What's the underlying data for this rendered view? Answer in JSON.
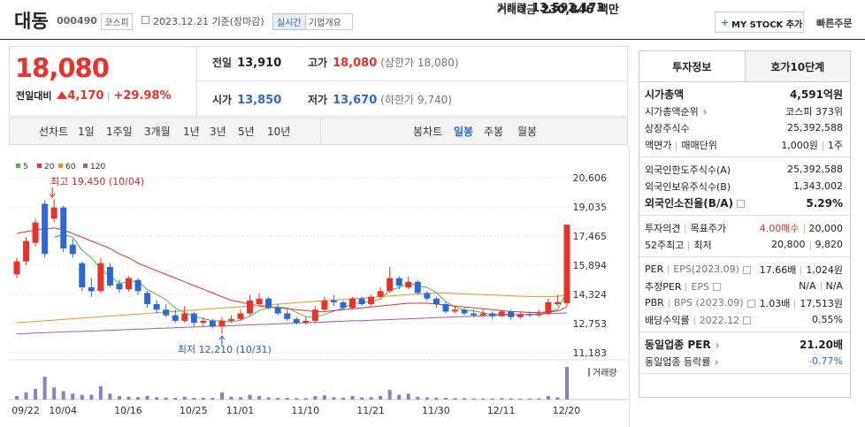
{
  "header": {
    "name": "대동",
    "code": "000490",
    "market": "코스피",
    "date": "2023.12.21 기준(장마감)",
    "realtime": "실시간",
    "company_info": "기업개요",
    "my_stock": "MY STOCK 추가",
    "quick_order": "빠른주문"
  },
  "quote": {
    "price": "18,080",
    "change_label": "전일대비",
    "change": "4,170",
    "change_rate": "+29.98%",
    "cells": [
      [
        {
          "label": "전일",
          "value": "13,910"
        },
        {
          "label": "고가",
          "value": "18,080",
          "note": "(상한가 18,080)"
        },
        {
          "label": "거래량",
          "value": "13,592,173"
        }
      ],
      [
        {
          "label": "시가",
          "value": "13,850"
        },
        {
          "label": "저가",
          "value": "13,670",
          "note": "(하한가 9,740)"
        },
        {
          "label": "거래대금",
          "value": "230,846 백만"
        }
      ]
    ]
  },
  "chart_tabs": {
    "line_label": "선차트",
    "line_periods": [
      "1일",
      "1주일",
      "3개월",
      "1년",
      "3년",
      "5년",
      "10년"
    ],
    "candle_label": "봉차트",
    "candle_periods": [
      "일봉",
      "주봉",
      "월봉"
    ]
  },
  "chart_data": {
    "type": "candlestick",
    "categories": [
      "09/22",
      null,
      null,
      null,
      "10/04",
      null,
      null,
      null,
      null,
      null,
      null,
      "10/16",
      null,
      null,
      null,
      null,
      null,
      null,
      "10/25",
      null,
      null,
      null,
      null,
      "11/01",
      null,
      null,
      null,
      null,
      null,
      null,
      "11/10",
      null,
      null,
      null,
      null,
      null,
      null,
      "11/21",
      null,
      null,
      null,
      null,
      null,
      null,
      "11/30",
      null,
      null,
      null,
      null,
      null,
      null,
      "12/11",
      null,
      null,
      null,
      null,
      null,
      null,
      "12/20",
      null
    ],
    "open": [
      15400,
      16100,
      17100,
      19200,
      18400,
      19000,
      17000,
      16000,
      14700,
      14500,
      15800,
      14900,
      14600,
      15100,
      14400,
      13800,
      13500,
      13200,
      12900,
      13300,
      12800,
      12900,
      12600,
      12900,
      13000,
      13300,
      13800,
      14100,
      13600,
      13300,
      13000,
      12800,
      12900,
      13500,
      14000,
      13900,
      13600,
      14100,
      13800,
      14200,
      14500,
      15200,
      14700,
      15000,
      14400,
      14100,
      13800,
      13400,
      13500,
      13300,
      13200,
      13300,
      13150,
      13400,
      13100,
      13250,
      13200,
      13300,
      13800,
      13850
    ],
    "high": [
      16300,
      17400,
      18400,
      19400,
      19450,
      19100,
      17300,
      16100,
      15200,
      16300,
      16000,
      15100,
      15300,
      15200,
      14500,
      14000,
      13800,
      13500,
      13700,
      13400,
      13100,
      13000,
      13100,
      13200,
      13500,
      14300,
      14400,
      14200,
      13800,
      13500,
      13100,
      13100,
      13700,
      14200,
      14300,
      14000,
      14200,
      14200,
      14300,
      14700,
      15800,
      15300,
      15300,
      15100,
      14500,
      14200,
      13900,
      13700,
      13600,
      13500,
      13500,
      13400,
      13500,
      13500,
      13400,
      13400,
      13500,
      14100,
      14300,
      18080
    ],
    "low": [
      15200,
      15900,
      16900,
      16300,
      18200,
      16600,
      16300,
      14500,
      14200,
      14400,
      14700,
      14400,
      14500,
      14300,
      13600,
      13300,
      13100,
      12800,
      12800,
      12600,
      12600,
      12500,
      12210,
      12800,
      12900,
      13200,
      13700,
      13500,
      13200,
      12900,
      12700,
      12700,
      12800,
      13400,
      13700,
      13500,
      13500,
      13700,
      13700,
      14100,
      14400,
      14600,
      14600,
      14300,
      14000,
      13600,
      13300,
      13300,
      13200,
      13100,
      13100,
      13000,
      13100,
      12950,
      13000,
      13100,
      13100,
      13200,
      13700,
      13670
    ],
    "close": [
      16100,
      17200,
      18200,
      16500,
      19000,
      16800,
      16500,
      14700,
      14500,
      16000,
      14800,
      14600,
      15200,
      14500,
      13800,
      13500,
      13200,
      12900,
      13300,
      12800,
      12900,
      12600,
      12900,
      13000,
      13300,
      14000,
      14100,
      13600,
      13300,
      13000,
      12800,
      12900,
      13500,
      14000,
      13900,
      13600,
      14100,
      13800,
      14200,
      14500,
      15200,
      14800,
      15000,
      14400,
      14100,
      13800,
      13400,
      13500,
      13300,
      13200,
      13300,
      13150,
      13400,
      13100,
      13250,
      13200,
      13300,
      13900,
      13910,
      18080
    ],
    "volume": [
      1500000,
      3000000,
      4500000,
      9500000,
      5000000,
      3500000,
      2500000,
      2000000,
      2000000,
      5500000,
      2500000,
      1500000,
      1200000,
      1000000,
      1500000,
      1000000,
      800000,
      700000,
      1200000,
      700000,
      800000,
      700000,
      3000000,
      1200000,
      1000000,
      2000000,
      1500000,
      900000,
      700000,
      700000,
      600000,
      600000,
      1500000,
      1800000,
      1000000,
      800000,
      1500000,
      900000,
      1000000,
      1500000,
      4000000,
      2000000,
      2500000,
      1200000,
      900000,
      800000,
      700000,
      600000,
      600000,
      500000,
      500000,
      500000,
      600000,
      500000,
      400000,
      400000,
      500000,
      1500000,
      1000000,
      13592173
    ],
    "volume_label": "거래량",
    "series": [
      {
        "name": "5",
        "color": "#4cb84c",
        "values": [
          null,
          null,
          null,
          null,
          17400,
          17540,
          17400,
          16700,
          16300,
          15700,
          15300,
          14920,
          15020,
          15020,
          14580,
          14320,
          14040,
          13580,
          13340,
          13140,
          13020,
          12900,
          12900,
          12840,
          12940,
          13160,
          13460,
          13600,
          13660,
          13600,
          13360,
          13120,
          13100,
          13240,
          13420,
          13580,
          13820,
          13880,
          13940,
          14080,
          14540,
          14700,
          14940,
          14780,
          14700,
          14420,
          13940,
          13640,
          13480,
          13440,
          13340,
          13230,
          13270,
          13230,
          13240,
          13220,
          13250,
          13390,
          13500,
          14480
        ]
      },
      {
        "name": "20",
        "color": "#e5322d",
        "values": [
          17600,
          17700,
          17800,
          17850,
          17900,
          17800,
          17600,
          17400,
          17200,
          17000,
          16800,
          16500,
          16300,
          16000,
          15800,
          15600,
          15400,
          15200,
          15000,
          14800,
          14600,
          14400,
          14200,
          14000,
          13900,
          13800,
          13700,
          13650,
          13600,
          13550,
          13500,
          13450,
          13400,
          13400,
          13450,
          13500,
          13550,
          13600,
          13650,
          13700,
          13750,
          13800,
          13850,
          13850,
          13850,
          13800,
          13750,
          13700,
          13650,
          13600,
          13550,
          13500,
          13450,
          13400,
          13380,
          13350,
          13350,
          13380,
          13420,
          13650
        ]
      },
      {
        "name": "60",
        "color": "#f0922b",
        "values": [
          12800,
          12830,
          12870,
          12900,
          12940,
          12980,
          13010,
          13050,
          13080,
          13120,
          13160,
          13190,
          13230,
          13260,
          13300,
          13340,
          13370,
          13410,
          13440,
          13480,
          13520,
          13550,
          13590,
          13620,
          13660,
          13700,
          13730,
          13770,
          13800,
          13840,
          13880,
          13910,
          13950,
          13980,
          14020,
          14060,
          14090,
          14130,
          14160,
          14200,
          14240,
          14270,
          14310,
          14340,
          14370,
          14400,
          14390,
          14370,
          14350,
          14330,
          14310,
          14290,
          14270,
          14250,
          14230,
          14210,
          14200,
          14200,
          14220,
          14300
        ]
      },
      {
        "name": "120",
        "color": "#9a5ac0",
        "values": [
          12200,
          12220,
          12240,
          12260,
          12280,
          12300,
          12320,
          12330,
          12350,
          12370,
          12390,
          12410,
          12430,
          12450,
          12470,
          12490,
          12510,
          12530,
          12550,
          12570,
          12590,
          12610,
          12620,
          12640,
          12660,
          12680,
          12700,
          12720,
          12740,
          12760,
          12780,
          12800,
          12820,
          12840,
          12860,
          12880,
          12900,
          12910,
          12930,
          12950,
          12970,
          12990,
          13010,
          13030,
          13050,
          13070,
          13090,
          13110,
          13130,
          13150,
          13170,
          13180,
          13200,
          13220,
          13240,
          13250,
          13270,
          13280,
          13300,
          13330
        ]
      }
    ],
    "annotations": [
      "최고 19,450 (10/04)",
      "최저 12,210 (10/31)"
    ],
    "colors": {
      "up": "#e8322c",
      "down": "#2f68d6",
      "volume": "#8c7fc4",
      "high_note": "#d8261e",
      "low_note": "#2a5fb8"
    },
    "ylim": [
      11183,
      20606
    ],
    "yticks": [
      {
        "value": 11183,
        "label": "11,183"
      },
      {
        "value": 12753,
        "label": "12,753"
      },
      {
        "value": 14324,
        "label": "14,324"
      },
      {
        "value": 15894,
        "label": "15,894"
      },
      {
        "value": 17465,
        "label": "17,465"
      },
      {
        "value": 19035,
        "label": "19,035"
      },
      {
        "value": 20606,
        "label": "20,606"
      }
    ],
    "grid": true
  },
  "side_panel": {
    "tabs": [
      "투자정보",
      "호가10단계"
    ],
    "sections": [
      [
        {
          "label": [
            "시가총액"
          ],
          "value": [
            "4,591억원"
          ]
        },
        {
          "label": [
            "시가총액순위"
          ],
          "value": [
            "코스피 373위"
          ]
        },
        {
          "label": [
            "상장주식수"
          ],
          "value": [
            "25,392,588"
          ]
        },
        {
          "label": [
            "액면가",
            "매매단위"
          ],
          "value": [
            "1,000원",
            "1주"
          ]
        }
      ],
      [
        {
          "label": [
            "외국인한도주식수(A)"
          ],
          "value": [
            "25,392,588"
          ]
        },
        {
          "label": [
            "외국인보유주식수(B)"
          ],
          "value": [
            "1,343,002"
          ]
        },
        {
          "label": [
            "외국인소진율(B/A)"
          ],
          "value": [
            "5.29%"
          ]
        }
      ],
      [
        {
          "label": [
            "투자의견",
            "목표주가"
          ],
          "value": [
            "4.00매수",
            "20,000"
          ]
        },
        {
          "label": [
            "52주최고",
            "최저"
          ],
          "value": [
            "20,800",
            "9,820"
          ]
        }
      ],
      [
        {
          "label": [
            "PER",
            "EPS(2023.09)"
          ],
          "value": [
            "17.66배",
            "1,024원"
          ]
        },
        {
          "label": [
            "추정PER",
            "EPS"
          ],
          "value": [
            "N/A",
            "N/A"
          ]
        },
        {
          "label": [
            "PBR",
            "BPS (2023.09)"
          ],
          "value": [
            "1.03배",
            "17,513원"
          ]
        },
        {
          "label": [
            "배당수익률",
            "2022.12"
          ],
          "value": [
            "0.55%"
          ]
        }
      ],
      [
        {
          "label": [
            "동일업종 PER"
          ],
          "value": [
            "21.20배"
          ]
        },
        {
          "label": [
            "동일업종 등락률"
          ],
          "value": [
            "-0.77%"
          ]
        }
      ]
    ]
  }
}
